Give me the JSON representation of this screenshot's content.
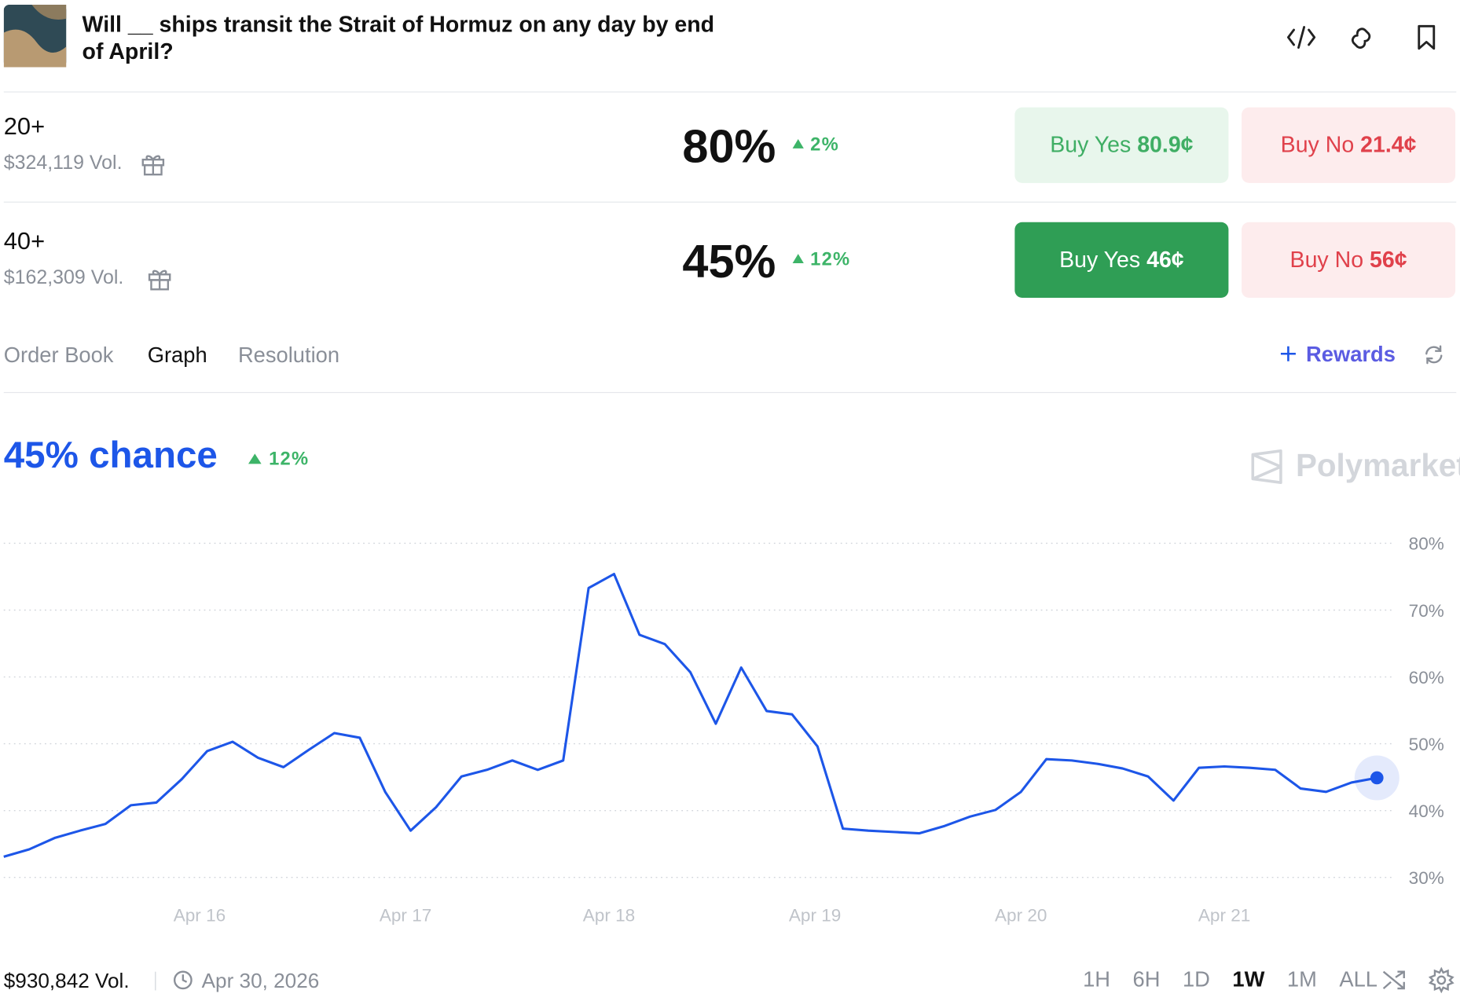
{
  "header": {
    "title": "Will __ ships transit the Strait of Hormuz on any day by end of April?"
  },
  "outcomes": [
    {
      "label": "20+",
      "volume": "$324,119 Vol.",
      "chance": "80%",
      "change": "2%",
      "buy_yes": "Buy Yes",
      "yes_price": "80.9¢",
      "buy_no": "Buy No",
      "no_price": "21.4¢"
    },
    {
      "label": "40+",
      "volume": "$162,309 Vol.",
      "chance": "45%",
      "change": "12%",
      "buy_yes": "Buy Yes",
      "yes_price": "46¢",
      "buy_no": "Buy No",
      "no_price": "56¢"
    }
  ],
  "tabs": [
    "Order Book",
    "Graph",
    "Resolution"
  ],
  "rewards": "Rewards",
  "chart_header": {
    "chance": "45% chance",
    "change": "12%",
    "watermark": "Polymarket"
  },
  "chart_data": {
    "type": "line",
    "series": [
      {
        "name": "40+",
        "color": "#1d56e8",
        "values": [
          33.1,
          34.2,
          35.9,
          37.0,
          38.0,
          40.8,
          41.2,
          44.7,
          48.9,
          50.3,
          47.9,
          46.5,
          49.1,
          51.6,
          50.9,
          42.8,
          37.0,
          40.5,
          45.1,
          46.1,
          47.5,
          46.1,
          47.5,
          73.3,
          75.4,
          66.3,
          64.9,
          60.7,
          53.0,
          61.4,
          54.9,
          54.4,
          49.6,
          37.3,
          37.0,
          36.8,
          36.6,
          37.7,
          39.1,
          40.1,
          42.8,
          47.7,
          47.5,
          47.0,
          46.3,
          45.1,
          41.5,
          46.4,
          46.6,
          46.4,
          46.1,
          43.3,
          42.8,
          44.2,
          44.9
        ]
      }
    ],
    "xlim": [
      0,
      54
    ],
    "xticks": [
      {
        "value": 7.7,
        "label": "Apr 16"
      },
      {
        "value": 15.8,
        "label": "Apr 17"
      },
      {
        "value": 23.8,
        "label": "Apr 18"
      },
      {
        "value": 31.9,
        "label": "Apr 19"
      },
      {
        "value": 40,
        "label": "Apr 20"
      },
      {
        "value": 48,
        "label": "Apr 21"
      }
    ],
    "ylim": [
      30,
      80
    ],
    "yticks": [
      {
        "value": 30,
        "label": "30%"
      },
      {
        "value": 40,
        "label": "40%"
      },
      {
        "value": 50,
        "label": "50%"
      },
      {
        "value": 60,
        "label": "60%"
      },
      {
        "value": 70,
        "label": "70%"
      },
      {
        "value": 80,
        "label": "80%"
      }
    ],
    "grid": true
  },
  "footer": {
    "volume": "$930,842 Vol.",
    "date": "Apr 30, 2026",
    "ranges": [
      "1H",
      "6H",
      "1D",
      "1W",
      "1M",
      "ALL"
    ],
    "active_range": "1W"
  }
}
